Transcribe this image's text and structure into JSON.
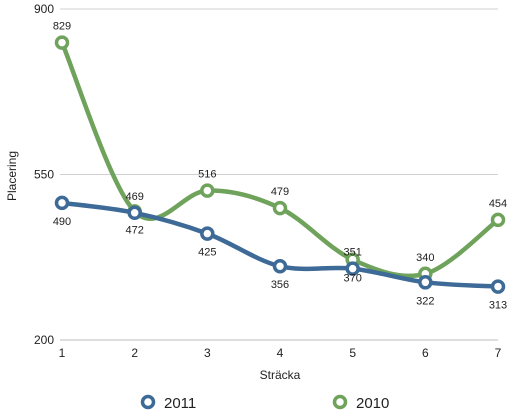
{
  "chart_data": {
    "type": "line",
    "title": "",
    "xlabel": "Sträcka",
    "ylabel": "Placering",
    "x": [
      1,
      2,
      3,
      4,
      5,
      6,
      7
    ],
    "x_tick_labels": [
      "1",
      "2",
      "3",
      "4",
      "5",
      "6",
      "7"
    ],
    "ylim": [
      200,
      900
    ],
    "y_ticks": [
      200,
      550,
      900
    ],
    "y_tick_labels": [
      "200",
      "550",
      "900"
    ],
    "grid": true,
    "smooth": true,
    "legend_position": "bottom",
    "series": [
      {
        "name": "2011",
        "color": "#3d6a96",
        "values": [
          490,
          469,
          425,
          356,
          351,
          322,
          313
        ],
        "value_labels": [
          "490",
          "469",
          "425",
          "356",
          "351",
          "322",
          "313"
        ],
        "label_positions": [
          "below",
          "above",
          "below",
          "below",
          "above",
          "below",
          "below"
        ]
      },
      {
        "name": "2010",
        "color": "#6fa35b",
        "values": [
          829,
          472,
          516,
          479,
          370,
          340,
          454
        ],
        "value_labels": [
          "829",
          "472",
          "516",
          "479",
          "370",
          "340",
          "454"
        ],
        "label_positions": [
          "above",
          "below",
          "above",
          "above",
          "below",
          "above",
          "above"
        ]
      }
    ]
  }
}
